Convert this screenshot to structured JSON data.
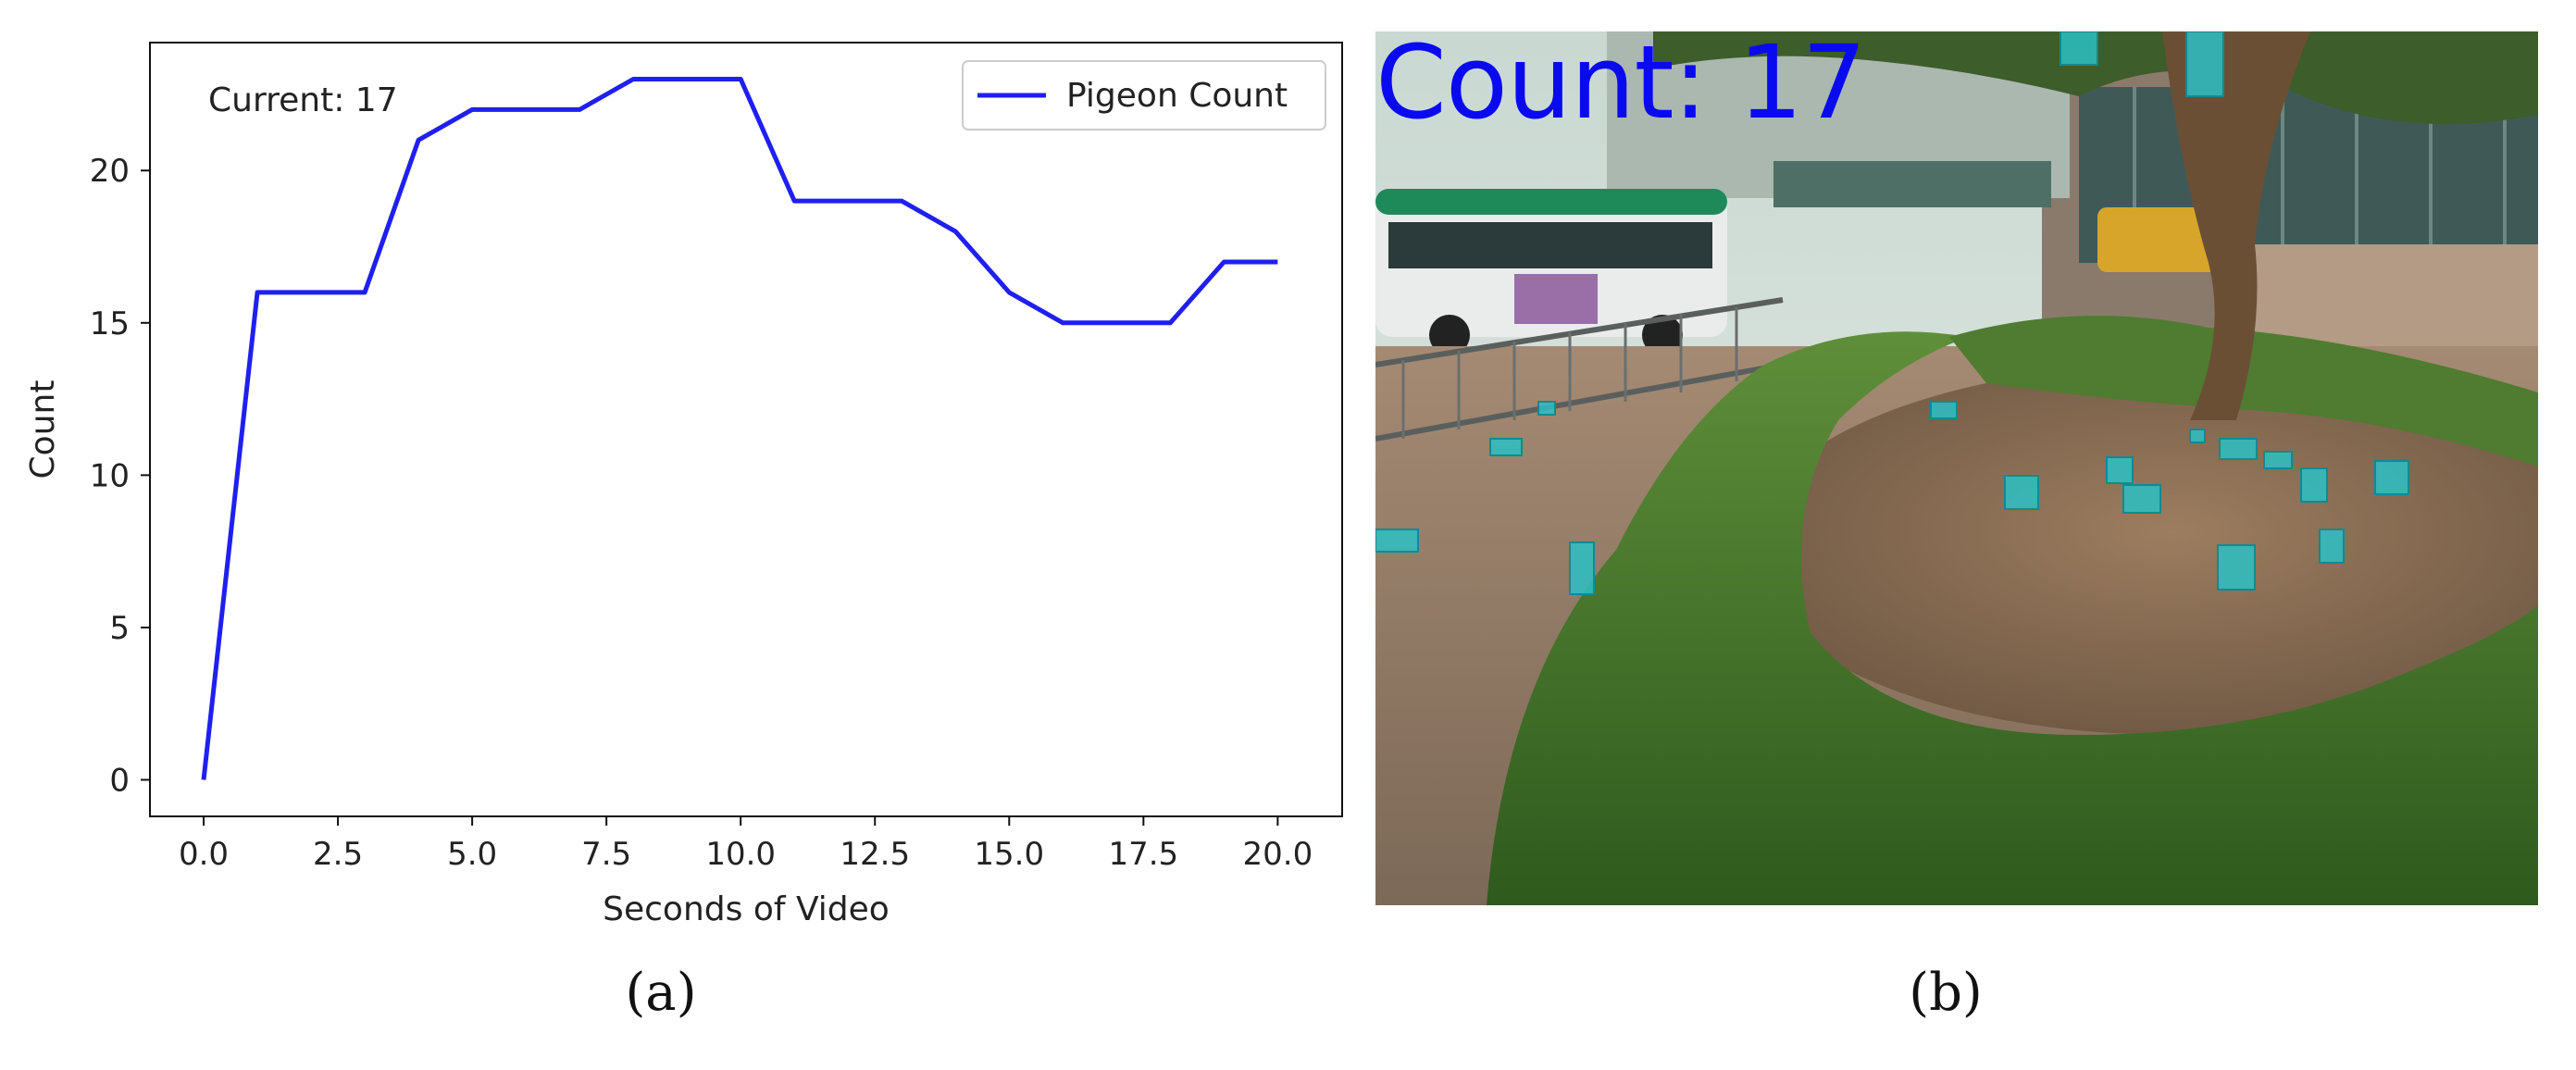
{
  "chart_data": {
    "type": "line",
    "x": [
      0,
      1,
      2,
      3,
      4,
      5,
      6,
      7,
      8,
      9,
      10,
      11,
      12,
      13,
      14,
      15,
      16,
      17,
      18,
      19,
      20
    ],
    "series": [
      {
        "name": "Pigeon Count",
        "values": [
          0,
          16,
          16,
          16,
          21,
          22,
          22,
          22,
          23,
          23,
          23,
          19,
          19,
          19,
          18,
          16,
          15,
          15,
          15,
          17,
          17
        ],
        "color": "#1f1ff0"
      }
    ],
    "xlabel": "Seconds of Video",
    "ylabel": "Count",
    "xlim": [
      -1,
      21.2
    ],
    "ylim": [
      -1.2,
      24.2
    ],
    "xticks": [
      0,
      2.5,
      5,
      7.5,
      10,
      12.5,
      15,
      17.5,
      20
    ],
    "xtick_labels": [
      "0.0",
      "2.5",
      "5.0",
      "7.5",
      "10.0",
      "12.5",
      "15.0",
      "17.5",
      "20.0"
    ],
    "yticks": [
      0,
      5,
      10,
      15,
      20
    ],
    "ytick_labels": [
      "0",
      "5",
      "10",
      "15",
      "20"
    ],
    "annotation": "Current: 17",
    "legend_position": "top-right",
    "grid": false
  },
  "captions": {
    "a": "(a)",
    "b": "(b)"
  },
  "photo": {
    "overlay_text": "Count: 17",
    "overlay_color": "#0a0af0"
  }
}
